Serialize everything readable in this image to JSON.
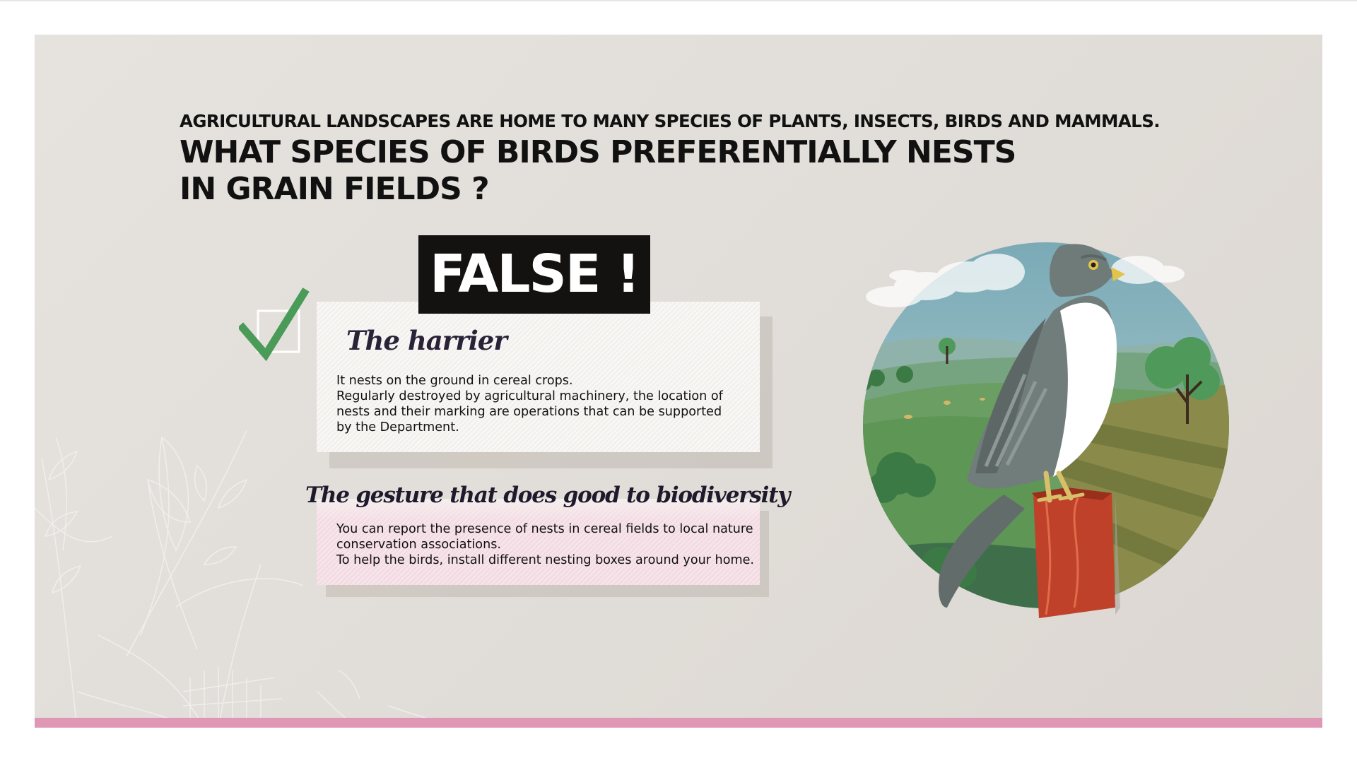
{
  "header": {
    "kicker": "AGRICULTURAL LANDSCAPES ARE HOME TO MANY SPECIES OF PLANTS, INSECTS, BIRDS AND MAMMALS.",
    "question_line1": "WHAT SPECIES OF BIRDS PREFERENTIALLY NESTS",
    "question_line2": "IN GRAIN FIELDS ?"
  },
  "verdict": {
    "label": "FALSE !",
    "check_icon": "checkmark-icon",
    "check_color": "#4a9a58"
  },
  "answer": {
    "bird_name": "The harrier",
    "lines": [
      "It nests on the ground in cereal crops.",
      "Regularly destroyed by agricultural machinery, the location of",
      "nests and their marking are operations that can be supported",
      "by the Department."
    ]
  },
  "gesture": {
    "title": "The gesture that does good to biodiversity",
    "lines": [
      "You can report the presence of nests in cereal fields to local nature",
      "conservation associations.",
      "To help the birds, install different nesting boxes around your home."
    ]
  },
  "illustration": {
    "subject": "harrier-on-post",
    "icon": "bird-illustration"
  },
  "colors": {
    "accent_pink": "#e097b5",
    "badge_black": "#141210",
    "panel_bg": "#e3e0dc"
  }
}
